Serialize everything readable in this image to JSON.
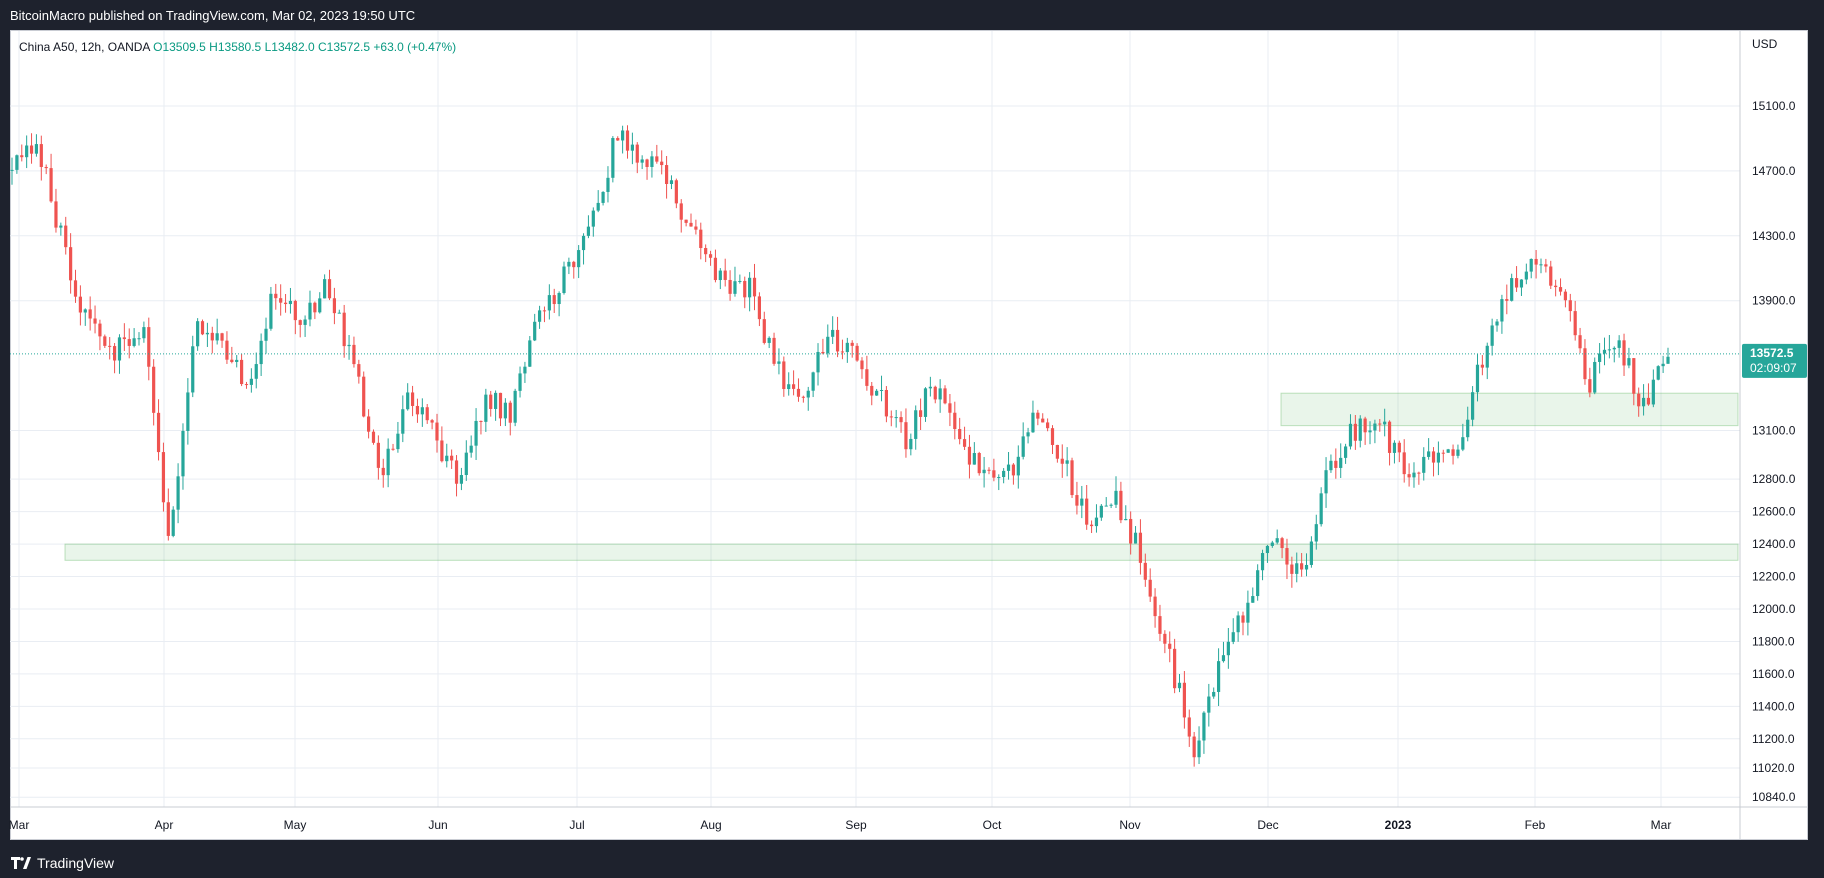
{
  "header": {
    "publisher_line": "BitcoinMacro published on TradingView.com, Mar 02, 2023 19:50 UTC"
  },
  "legend": {
    "symbol": "China A50, 12h, OANDA",
    "open_label": "O",
    "open_value": "13509.5",
    "high_label": "H",
    "high_value": "13580.5",
    "low_label": "L",
    "low_value": "13482.0",
    "close_label": "C",
    "close_value": "13572.5",
    "change": "+63.0 (+0.47%)"
  },
  "price_scale": {
    "currency": "USD",
    "last_price": "13572.5",
    "countdown": "02:09:07"
  },
  "footer": {
    "brand": "TradingView"
  },
  "colors": {
    "up": "#26a69a",
    "down": "#ef5350",
    "zone": "#4caf50",
    "grid": "#e9edf3",
    "price_label": "#26a69a"
  },
  "chart_data": {
    "type": "candlestick",
    "title": "China A50, 12h, OANDA",
    "ylabel": "USD",
    "ylim": [
      10840,
      15350
    ],
    "y_ticks": [
      15100.0,
      14700.0,
      14300.0,
      13900.0,
      13100.0,
      12800.0,
      12600.0,
      12400.0,
      12200.0,
      12000.0,
      11800.0,
      11600.0,
      11400.0,
      11200.0,
      11020.0,
      10840.0
    ],
    "x_ticks": [
      "Mar",
      "Apr",
      "May",
      "Jun",
      "Jul",
      "Aug",
      "Sep",
      "Oct",
      "Nov",
      "Dec",
      "2023",
      "Feb",
      "Mar"
    ],
    "current_price": 13572.5,
    "zones": [
      {
        "from": "Mar",
        "to": "right-edge",
        "low": 12300,
        "high": 12400
      },
      {
        "from": "Dec",
        "to": "right-edge",
        "low": 13130,
        "high": 13330
      }
    ],
    "path": [
      [
        "Mar",
        14700
      ],
      [
        "Mar",
        14850
      ],
      [
        "Mar",
        14200
      ],
      [
        "Mar",
        13700
      ],
      [
        "Mar",
        13600
      ],
      [
        "Apr",
        13700
      ],
      [
        "Apr",
        12350
      ],
      [
        "Apr",
        13800
      ],
      [
        "Apr",
        13600
      ],
      [
        "Apr",
        13400
      ],
      [
        "Apr",
        14000
      ],
      [
        "Apr",
        13800
      ],
      [
        "Apr",
        14000
      ],
      [
        "May",
        13500
      ],
      [
        "May",
        12800
      ],
      [
        "May",
        13300
      ],
      [
        "May",
        13100
      ],
      [
        "May",
        12750
      ],
      [
        "Jun",
        13300
      ],
      [
        "Jun",
        13200
      ],
      [
        "Jun",
        13800
      ],
      [
        "Jun",
        14050
      ],
      [
        "Jun",
        14400
      ],
      [
        "Jul",
        14900
      ],
      [
        "Jul",
        14800
      ],
      [
        "Jul",
        14600
      ],
      [
        "Jul",
        14300
      ],
      [
        "Jul",
        14000
      ],
      [
        "Aug",
        14000
      ],
      [
        "Aug",
        13500
      ],
      [
        "Aug",
        13300
      ],
      [
        "Aug",
        13700
      ],
      [
        "Aug",
        13600
      ],
      [
        "Aug",
        13300
      ],
      [
        "Sep",
        13050
      ],
      [
        "Sep",
        13400
      ],
      [
        "Sep",
        13050
      ],
      [
        "Sep",
        12800
      ],
      [
        "Oct",
        12850
      ],
      [
        "Oct",
        13250
      ],
      [
        "Oct",
        12900
      ],
      [
        "Oct",
        12500
      ],
      [
        "Oct",
        12700
      ],
      [
        "Oct",
        12300
      ],
      [
        "Nov",
        11700
      ],
      [
        "Nov",
        11150
      ],
      [
        "Nov",
        11700
      ],
      [
        "Nov",
        12050
      ],
      [
        "Nov",
        12450
      ],
      [
        "Nov",
        12200
      ],
      [
        "Dec",
        12800
      ],
      [
        "Dec",
        13100
      ],
      [
        "Dec",
        13200
      ],
      [
        "Dec",
        12800
      ],
      [
        "Dec",
        12950
      ],
      [
        "2023",
        13000
      ],
      [
        "2023",
        13600
      ],
      [
        "2023",
        14000
      ],
      [
        "2023",
        14200
      ],
      [
        "Feb",
        13950
      ],
      [
        "Feb",
        13400
      ],
      [
        "Feb",
        13700
      ],
      [
        "Feb",
        13250
      ],
      [
        "Mar",
        13550
      ]
    ]
  }
}
